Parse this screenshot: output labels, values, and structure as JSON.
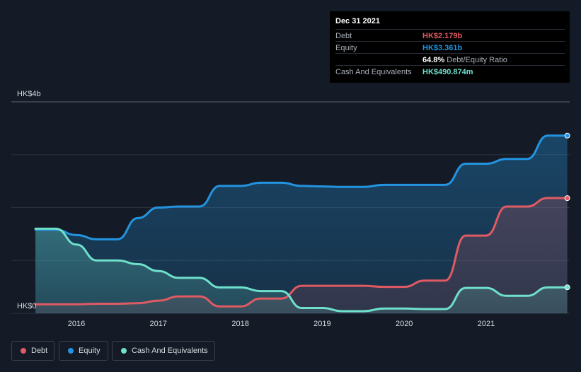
{
  "tooltip": {
    "date": "Dec 31 2021",
    "debt_label": "Debt",
    "debt_value": "HK$2.179b",
    "equity_label": "Equity",
    "equity_value": "HK$3.361b",
    "ratio_value": "64.8%",
    "ratio_label": "Debt/Equity Ratio",
    "cash_label": "Cash And Equivalents",
    "cash_value": "HK$490.874m"
  },
  "colors": {
    "debt": "#e05a63",
    "equity": "#2394df",
    "cash": "#6ee0cc",
    "background": "#151b26",
    "grid": "#2b313d"
  },
  "legend": [
    {
      "label": "Debt",
      "color": "#e05a63"
    },
    {
      "label": "Equity",
      "color": "#2394df"
    },
    {
      "label": "Cash And Equivalents",
      "color": "#6ee0cc"
    }
  ],
  "chart_data": {
    "type": "area",
    "title": "",
    "xlabel": "",
    "ylabel": "",
    "y_tick_labels": [
      {
        "value": 4,
        "label": "HK$4b"
      },
      {
        "value": 0,
        "label": "HK$0"
      }
    ],
    "ylim": [
      0,
      4
    ],
    "xlim": [
      2015.5,
      2022.0
    ],
    "x_ticks": [
      2016,
      2017,
      2018,
      2019,
      2020,
      2021
    ],
    "x_tick_labels": [
      "2016",
      "2017",
      "2018",
      "2019",
      "2020",
      "2021"
    ],
    "grid": true,
    "series": [
      {
        "name": "Equity",
        "x": [
          2015.5,
          2015.75,
          2016.0,
          2016.25,
          2016.5,
          2016.75,
          2017.0,
          2017.25,
          2017.5,
          2017.75,
          2018.0,
          2018.25,
          2018.5,
          2018.75,
          2019.0,
          2019.25,
          2019.5,
          2019.75,
          2020.0,
          2020.25,
          2020.5,
          2020.75,
          2021.0,
          2021.25,
          2021.5,
          2021.75,
          2021.99
        ],
        "values": [
          1.58,
          1.58,
          1.48,
          1.4,
          1.4,
          1.8,
          2.0,
          2.02,
          2.02,
          2.41,
          2.41,
          2.47,
          2.47,
          2.41,
          2.4,
          2.39,
          2.39,
          2.43,
          2.43,
          2.43,
          2.43,
          2.83,
          2.83,
          2.92,
          2.92,
          3.36,
          3.361
        ]
      },
      {
        "name": "Debt",
        "x": [
          2015.5,
          2015.75,
          2016.0,
          2016.25,
          2016.5,
          2016.75,
          2017.0,
          2017.25,
          2017.5,
          2017.75,
          2018.0,
          2018.25,
          2018.5,
          2018.75,
          2019.0,
          2019.25,
          2019.5,
          2019.75,
          2020.0,
          2020.25,
          2020.5,
          2020.75,
          2021.0,
          2021.25,
          2021.5,
          2021.75,
          2021.99
        ],
        "values": [
          0.17,
          0.17,
          0.17,
          0.18,
          0.18,
          0.19,
          0.24,
          0.32,
          0.32,
          0.13,
          0.13,
          0.28,
          0.28,
          0.52,
          0.52,
          0.52,
          0.52,
          0.5,
          0.5,
          0.62,
          0.62,
          1.47,
          1.47,
          2.02,
          2.02,
          2.18,
          2.179
        ]
      },
      {
        "name": "Cash And Equivalents",
        "x": [
          2015.5,
          2015.75,
          2016.0,
          2016.25,
          2016.5,
          2016.75,
          2017.0,
          2017.25,
          2017.5,
          2017.75,
          2018.0,
          2018.25,
          2018.5,
          2018.75,
          2019.0,
          2019.25,
          2019.5,
          2019.75,
          2020.0,
          2020.25,
          2020.5,
          2020.75,
          2021.0,
          2021.25,
          2021.5,
          2021.75,
          2021.99
        ],
        "values": [
          1.6,
          1.6,
          1.3,
          1.0,
          1.0,
          0.93,
          0.8,
          0.67,
          0.67,
          0.49,
          0.49,
          0.42,
          0.42,
          0.1,
          0.1,
          0.04,
          0.04,
          0.09,
          0.09,
          0.08,
          0.08,
          0.48,
          0.48,
          0.33,
          0.33,
          0.49,
          0.491
        ]
      }
    ]
  }
}
